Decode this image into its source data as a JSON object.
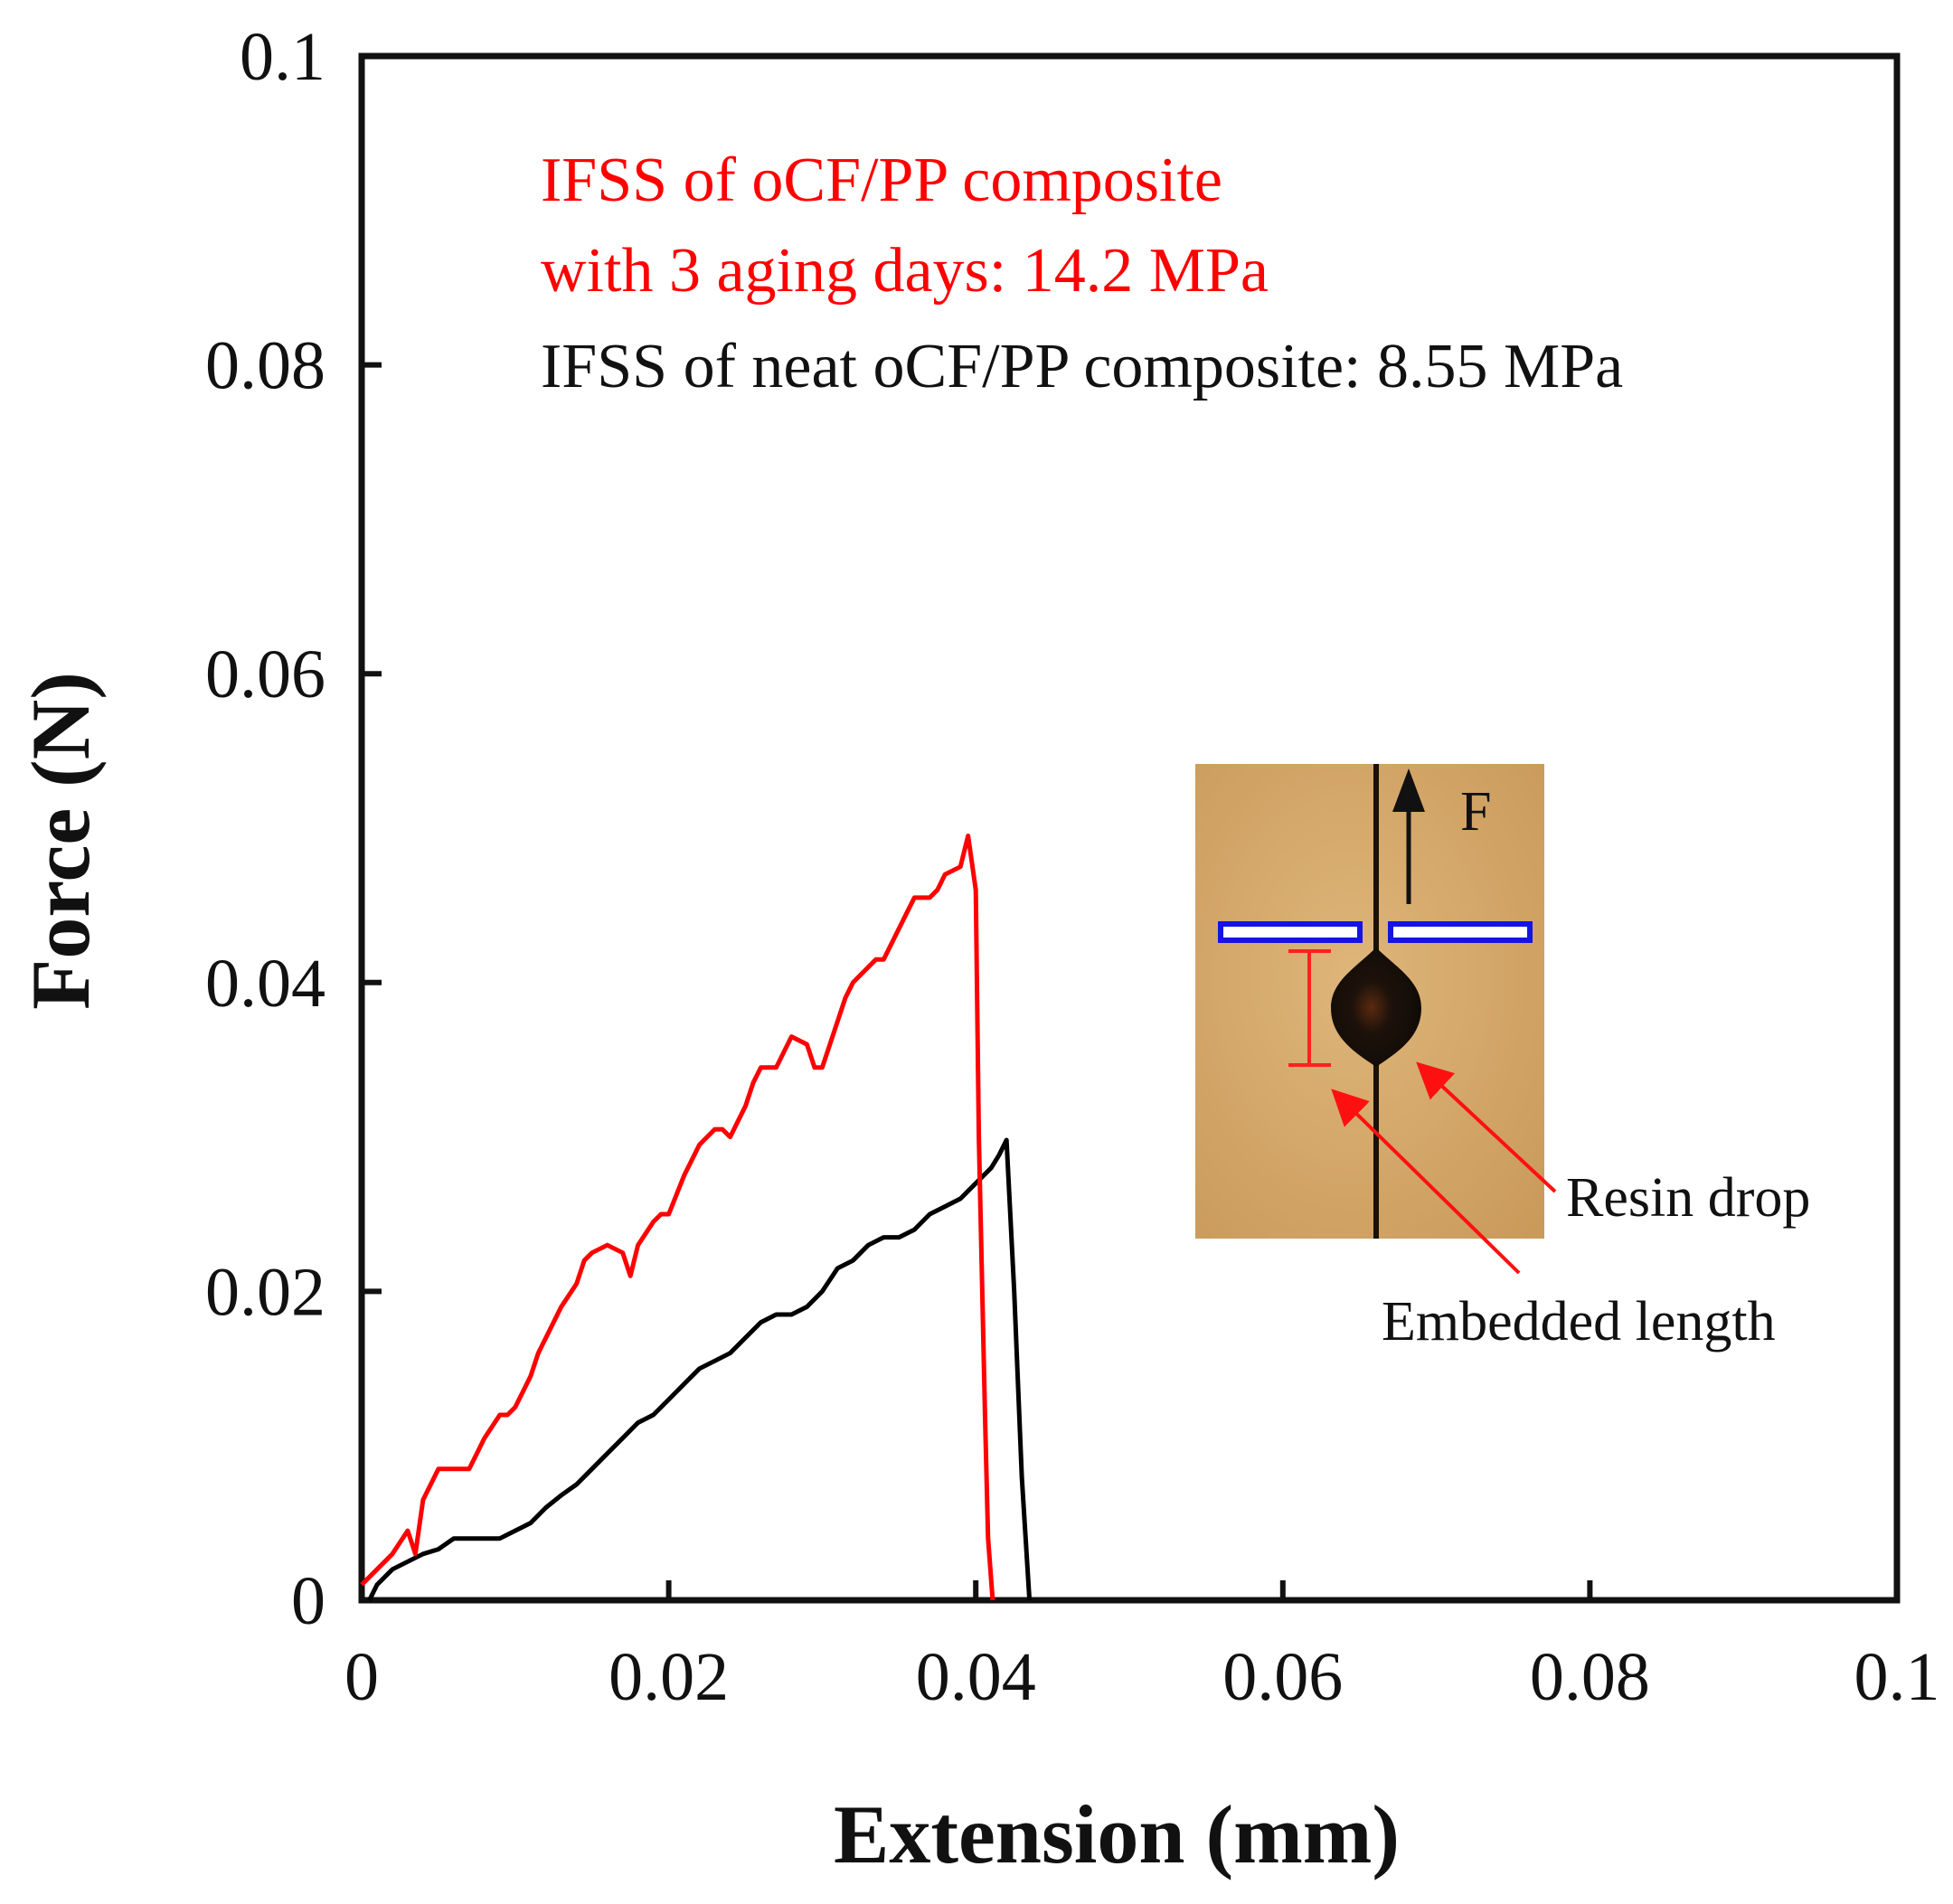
{
  "chart_data": {
    "type": "line",
    "xlabel": "Extension (mm)",
    "ylabel": "Force (N)",
    "xlim": [
      0,
      0.1
    ],
    "ylim": [
      0,
      0.1
    ],
    "xticks": [
      0,
      0.02,
      0.04,
      0.06,
      0.08,
      0.1
    ],
    "yticks": [
      0,
      0.02,
      0.04,
      0.06,
      0.08,
      0.1
    ],
    "xtick_labels": [
      "0",
      "0.02",
      "0.04",
      "0.06",
      "0.08",
      "0.1"
    ],
    "ytick_labels": [
      "0",
      "0.02",
      "0.04",
      "0.06",
      "0.08",
      "0.1"
    ],
    "grid": false,
    "series": [
      {
        "name": "oCF/PP composite with 3 aging days",
        "color": "#ff0000",
        "x": [
          0,
          0.001,
          0.002,
          0.003,
          0.0035,
          0.004,
          0.0045,
          0.005,
          0.0055,
          0.006,
          0.007,
          0.0075,
          0.008,
          0.009,
          0.0095,
          0.01,
          0.011,
          0.0115,
          0.012,
          0.013,
          0.014,
          0.0145,
          0.015,
          0.016,
          0.017,
          0.0175,
          0.018,
          0.019,
          0.0195,
          0.02,
          0.021,
          0.0215,
          0.022,
          0.023,
          0.0235,
          0.024,
          0.025,
          0.0255,
          0.026,
          0.027,
          0.0275,
          0.028,
          0.029,
          0.0295,
          0.03,
          0.031,
          0.0315,
          0.032,
          0.033,
          0.0335,
          0.034,
          0.035,
          0.0355,
          0.036,
          0.037,
          0.0375,
          0.038,
          0.039,
          0.0395,
          0.04,
          0.0402,
          0.0406,
          0.0408,
          0.0411
        ],
        "values": [
          0.001,
          0.002,
          0.003,
          0.0045,
          0.003,
          0.0065,
          0.0075,
          0.0085,
          0.0085,
          0.0085,
          0.0085,
          0.0095,
          0.0105,
          0.012,
          0.012,
          0.0125,
          0.0145,
          0.016,
          0.017,
          0.019,
          0.0205,
          0.022,
          0.0225,
          0.023,
          0.0225,
          0.021,
          0.023,
          0.0245,
          0.025,
          0.025,
          0.0275,
          0.0285,
          0.0295,
          0.0305,
          0.0305,
          0.03,
          0.032,
          0.0335,
          0.0345,
          0.0345,
          0.0355,
          0.0365,
          0.036,
          0.0345,
          0.0345,
          0.0375,
          0.039,
          0.04,
          0.041,
          0.0415,
          0.0415,
          0.0435,
          0.0445,
          0.0455,
          0.0455,
          0.046,
          0.047,
          0.0475,
          0.0495,
          0.046,
          0.03,
          0.012,
          0.004,
          0.0
        ]
      },
      {
        "name": "neat oCF/PP composite",
        "color": "#000000",
        "x": [
          0.0005,
          0.001,
          0.002,
          0.003,
          0.004,
          0.005,
          0.006,
          0.007,
          0.008,
          0.009,
          0.01,
          0.011,
          0.012,
          0.013,
          0.014,
          0.015,
          0.016,
          0.017,
          0.018,
          0.019,
          0.02,
          0.021,
          0.022,
          0.023,
          0.024,
          0.025,
          0.026,
          0.027,
          0.028,
          0.029,
          0.03,
          0.031,
          0.032,
          0.033,
          0.034,
          0.035,
          0.036,
          0.037,
          0.038,
          0.039,
          0.04,
          0.041,
          0.0415,
          0.042,
          0.0425,
          0.043,
          0.0435
        ],
        "values": [
          0.0,
          0.001,
          0.002,
          0.0025,
          0.003,
          0.0033,
          0.004,
          0.004,
          0.004,
          0.004,
          0.0045,
          0.005,
          0.006,
          0.0068,
          0.0075,
          0.0085,
          0.0095,
          0.0105,
          0.0115,
          0.012,
          0.013,
          0.014,
          0.015,
          0.0155,
          0.016,
          0.017,
          0.018,
          0.0185,
          0.0185,
          0.019,
          0.02,
          0.0215,
          0.022,
          0.023,
          0.0235,
          0.0235,
          0.024,
          0.025,
          0.0255,
          0.026,
          0.027,
          0.028,
          0.0288,
          0.0298,
          0.02,
          0.008,
          0.0
        ]
      }
    ],
    "annotations": [
      {
        "text": "IFSS of oCF/PP composite",
        "color": "#ff0000"
      },
      {
        "text": "with 3 aging days: 14.2 MPa",
        "color": "#ff0000"
      },
      {
        "text": "IFSS of neat oCF/PP composite: 8.55 MPa",
        "color": "#000000"
      }
    ],
    "inset": {
      "force_label": "F",
      "resin_label": "Resin drop",
      "embedded_label": "Embedded length"
    }
  }
}
